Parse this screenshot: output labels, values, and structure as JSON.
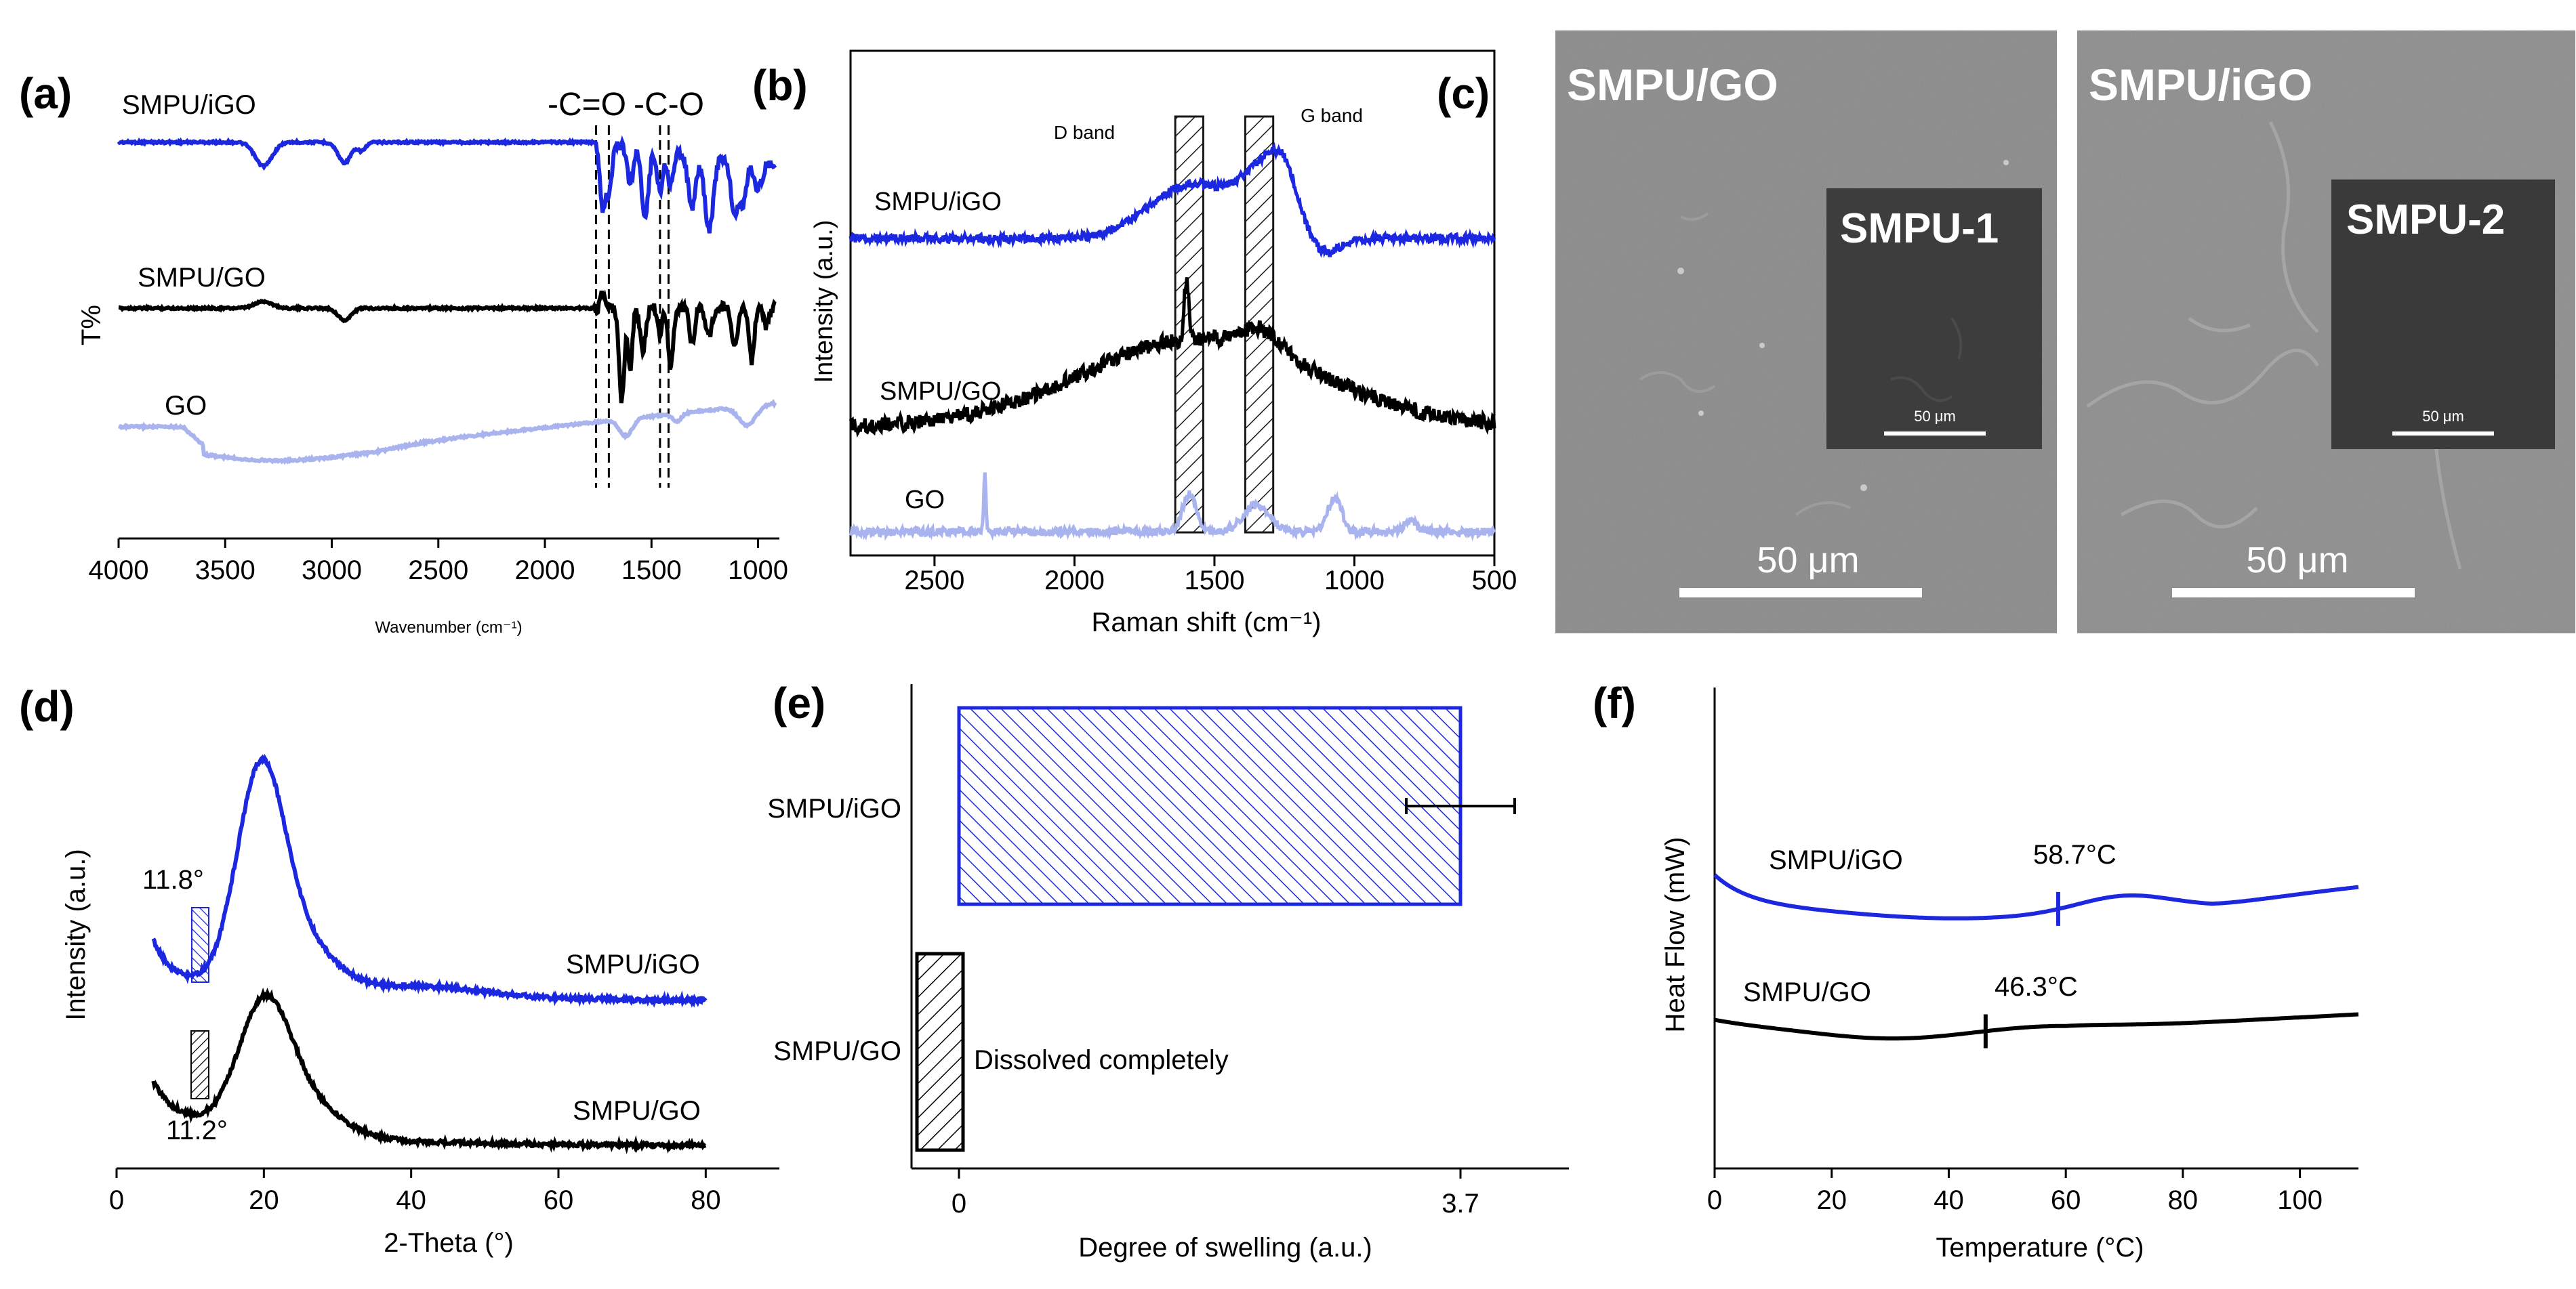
{
  "chart_data": [
    {
      "panel": "a",
      "type": "line",
      "title": "",
      "xlabel": "Wavenumber (cm⁻¹)",
      "ylabel": "T%",
      "xlim": [
        4000,
        900
      ],
      "xticks": [
        4000,
        3500,
        3000,
        2500,
        2000,
        1500,
        1000
      ],
      "annotations": [
        "-C=O",
        "-C-O"
      ],
      "bands": [
        [
          1760,
          1700
        ],
        [
          1460,
          1420
        ]
      ],
      "series": [
        {
          "name": "SMPU/iGO",
          "color": "#1c28e0"
        },
        {
          "name": "SMPU/GO",
          "color": "#000000"
        },
        {
          "name": "GO",
          "color": "#a9b4ef"
        }
      ]
    },
    {
      "panel": "b",
      "type": "line",
      "xlabel": "Raman shift (cm⁻¹)",
      "ylabel": "Intensity (a.u.)",
      "xlim": [
        2800,
        500
      ],
      "xticks": [
        2500,
        2000,
        1500,
        1000,
        500
      ],
      "annotations": [
        "D band",
        "G band"
      ],
      "bands": [
        [
          1640,
          1540
        ],
        [
          1390,
          1290
        ]
      ],
      "series": [
        {
          "name": "SMPU/iGO",
          "color": "#1c28e0"
        },
        {
          "name": "SMPU/GO",
          "color": "#000000"
        },
        {
          "name": "GO",
          "color": "#a9b4ef"
        }
      ]
    },
    {
      "panel": "d",
      "type": "line",
      "xlabel": "2-Theta (°)",
      "ylabel": "Intensity (a.u.)",
      "xlim": [
        0,
        90
      ],
      "xticks": [
        0,
        20,
        40,
        60,
        80
      ],
      "annotations": [
        "11.8°",
        "11.2°"
      ],
      "series": [
        {
          "name": "SMPU/iGO",
          "color": "#1c28e0",
          "peak_deg": 11.8
        },
        {
          "name": "SMPU/GO",
          "color": "#000000",
          "peak_deg": 11.2
        }
      ]
    },
    {
      "panel": "e",
      "type": "bar",
      "orientation": "horizontal",
      "xlabel": "Degree of swelling (a.u.)",
      "ylabel": "",
      "xticks": [
        "0",
        "3.7"
      ],
      "xlim": [
        -0.35,
        4.5
      ],
      "categories": [
        "SMPU/iGO",
        "SMPU/GO"
      ],
      "values": [
        3.7,
        0.0
      ],
      "error": [
        0.4,
        0
      ],
      "annotations": [
        "Dissolved completely"
      ]
    },
    {
      "panel": "f",
      "type": "line",
      "xlabel": "Temperature (°C)",
      "ylabel": "Heat Flow (mW)",
      "xlim": [
        0,
        110
      ],
      "xticks": [
        0,
        20,
        40,
        60,
        80,
        100
      ],
      "annotations": [
        "58.7°C",
        "46.3°C"
      ],
      "series": [
        {
          "name": "SMPU/iGO",
          "color": "#1c28e0",
          "transition_c": 58.7
        },
        {
          "name": "SMPU/GO",
          "color": "#000000",
          "transition_c": 46.3
        }
      ]
    }
  ],
  "panels": {
    "labels": [
      "(a)",
      "(b)",
      "(c)",
      "(d)",
      "(e)",
      "(f)"
    ]
  },
  "sem": {
    "left_title": "SMPU/GO",
    "left_inset": "SMPU-1",
    "right_title": "SMPU/iGO",
    "right_inset": "SMPU-2",
    "scale_main": "50 μm",
    "scale_inset": "50 μm"
  },
  "colors": {
    "blue": "#1c28e0",
    "black": "#000000",
    "lightblue": "#a9b4ef",
    "sem_gray": "#8a8a8a",
    "inset_gray": "#3d3d3d"
  }
}
